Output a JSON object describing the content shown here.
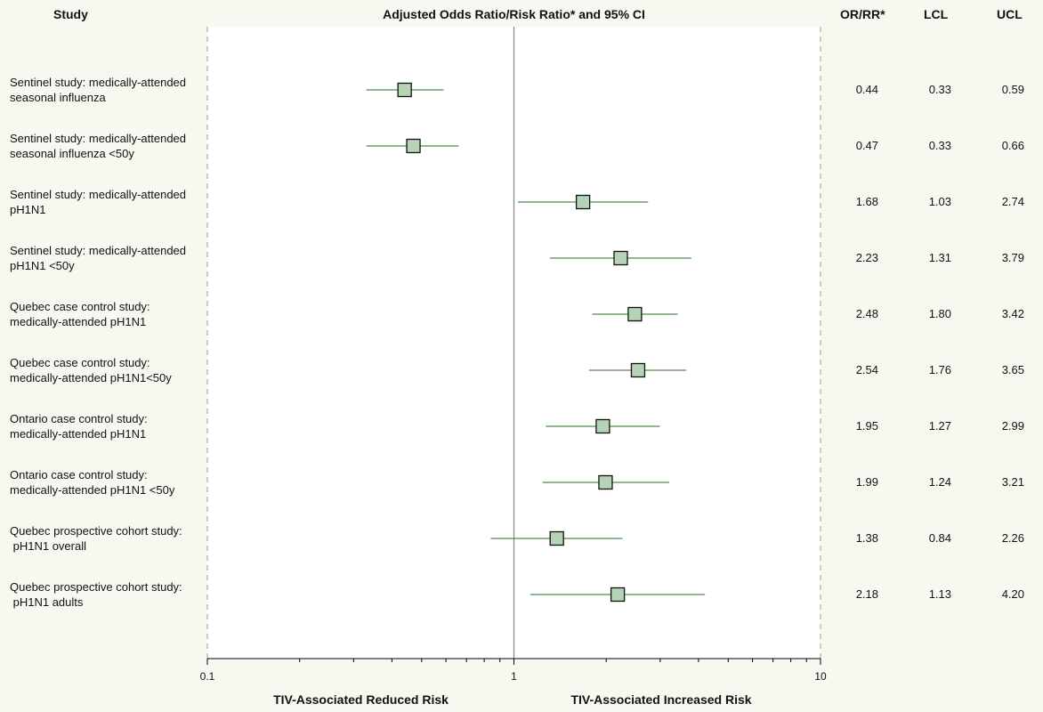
{
  "headers": {
    "study": "Study",
    "title": "Adjusted Odds Ratio/Risk Ratio* and 95% CI",
    "or": "OR/RR*",
    "lcl": "LCL",
    "ucl": "UCL"
  },
  "footer": {
    "left": "TIV-Associated Reduced Risk",
    "right": "TIV-Associated Increased Risk"
  },
  "chart_data": {
    "type": "forest",
    "x_scale": "log",
    "xlim": [
      0.1,
      10
    ],
    "reference_line": 1,
    "x_ticks": [
      "0.1",
      "1",
      "10"
    ],
    "colors": {
      "marker_fill": "#b5d3b5",
      "ci_line": "#4f8a4f",
      "plot_bg": "#ffffff"
    },
    "rows": [
      {
        "label1": "Sentinel study: medically-attended",
        "label2": "seasonal influenza",
        "or": 0.44,
        "lcl": 0.33,
        "ucl": 0.59,
        "or_text": "0.44",
        "lcl_text": "0.33",
        "ucl_text": "0.59"
      },
      {
        "label1": "Sentinel study: medically-attended",
        "label2": "seasonal influenza <50y",
        "or": 0.47,
        "lcl": 0.33,
        "ucl": 0.66,
        "or_text": "0.47",
        "lcl_text": "0.33",
        "ucl_text": "0.66"
      },
      {
        "label1": "Sentinel study: medically-attended",
        "label2": "pH1N1",
        "or": 1.68,
        "lcl": 1.03,
        "ucl": 2.74,
        "or_text": "1.68",
        "lcl_text": "1.03",
        "ucl_text": "2.74"
      },
      {
        "label1": "Sentinel study: medically-attended",
        "label2": "pH1N1 <50y",
        "or": 2.23,
        "lcl": 1.31,
        "ucl": 3.79,
        "or_text": "2.23",
        "lcl_text": "1.31",
        "ucl_text": "3.79"
      },
      {
        "label1": "Quebec case control study:",
        "label2": "medically-attended pH1N1",
        "or": 2.48,
        "lcl": 1.8,
        "ucl": 3.42,
        "or_text": "2.48",
        "lcl_text": "1.80",
        "ucl_text": "3.42"
      },
      {
        "label1": "Quebec case control study:",
        "label2": "medically-attended pH1N1<50y",
        "or": 2.54,
        "lcl": 1.76,
        "ucl": 3.65,
        "or_text": "2.54",
        "lcl_text": "1.76",
        "ucl_text": "3.65"
      },
      {
        "label1": "Ontario case control study:",
        "label2": "medically-attended pH1N1",
        "or": 1.95,
        "lcl": 1.27,
        "ucl": 2.99,
        "or_text": "1.95",
        "lcl_text": "1.27",
        "ucl_text": "2.99"
      },
      {
        "label1": "Ontario case control study:",
        "label2": "medically-attended pH1N1 <50y",
        "or": 1.99,
        "lcl": 1.24,
        "ucl": 3.21,
        "or_text": "1.99",
        "lcl_text": "1.24",
        "ucl_text": "3.21"
      },
      {
        "label1": "Quebec prospective cohort study:",
        "label2": " pH1N1 overall",
        "or": 1.38,
        "lcl": 0.84,
        "ucl": 2.26,
        "or_text": "1.38",
        "lcl_text": "0.84",
        "ucl_text": "2.26"
      },
      {
        "label1": "Quebec prospective cohort study:",
        "label2": " pH1N1 adults",
        "or": 2.18,
        "lcl": 1.13,
        "ucl": 4.2,
        "or_text": "2.18",
        "lcl_text": "1.13",
        "ucl_text": "4.20"
      }
    ]
  }
}
